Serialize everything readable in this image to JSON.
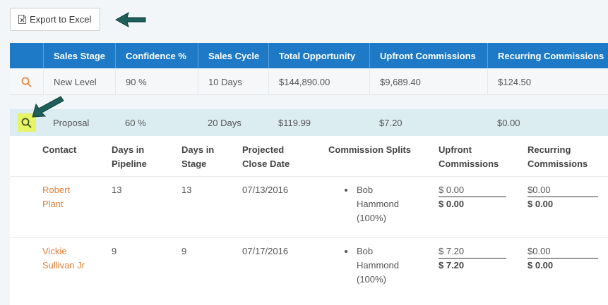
{
  "toolbar": {
    "export_label": "Export to Excel"
  },
  "table": {
    "headers": [
      "Sales Stage",
      "Confidence %",
      "Sales Cycle",
      "Total Opportunity",
      "Upfront Commissions",
      "Recurring Commissions"
    ],
    "rows": [
      [
        "New Level",
        "90 %",
        "10 Days",
        "$144,890.00",
        "$9,689.40",
        "$124.50"
      ],
      [
        "Proposal",
        "60 %",
        "20 Days",
        "$119.99",
        "$7.20",
        "$0.00"
      ]
    ]
  },
  "detail": {
    "headers": {
      "contact": "Contact",
      "days_pipeline_1": "Days in",
      "days_pipeline_2": "Pipeline",
      "days_stage_1": "Days in",
      "days_stage_2": "Stage",
      "close_1": "Projected",
      "close_2": "Close Date",
      "splits": "Commission Splits",
      "upfront_1": "Upfront",
      "upfront_2": "Commissions",
      "recurring_1": "Recurring",
      "recurring_2": "Commissions"
    },
    "rows": [
      {
        "contact_1": "Robert",
        "contact_2": "Plant",
        "days_pipeline": "13",
        "days_stage": "13",
        "close_date": "07/13/2016",
        "split_1": "Bob",
        "split_2": "Hammond",
        "split_3": "(100%)",
        "upfront_line": "$ 0.00",
        "upfront_total": "$ 0.00",
        "recurring_line": "$0.00",
        "recurring_total": "$ 0.00"
      },
      {
        "contact_1": "Vickie",
        "contact_2": "Sullivan Jr",
        "days_pipeline": "9",
        "days_stage": "9",
        "close_date": "07/17/2016",
        "split_1": "Bob",
        "split_2": "Hammond",
        "split_3": "(100%)",
        "upfront_line": "$ 7.20",
        "upfront_total": "$ 7.20",
        "recurring_line": "$0.00",
        "recurring_total": "$ 0.00"
      }
    ]
  },
  "colors": {
    "header_bg": "#1e7ac6",
    "link": "#e5813a",
    "highlight": "#e6f466",
    "arrow": "#1f5f5a"
  },
  "icons": {
    "export": "excel-file-icon",
    "expand": "magnifier-icon",
    "annotation": "arrow-annotation-icon"
  }
}
